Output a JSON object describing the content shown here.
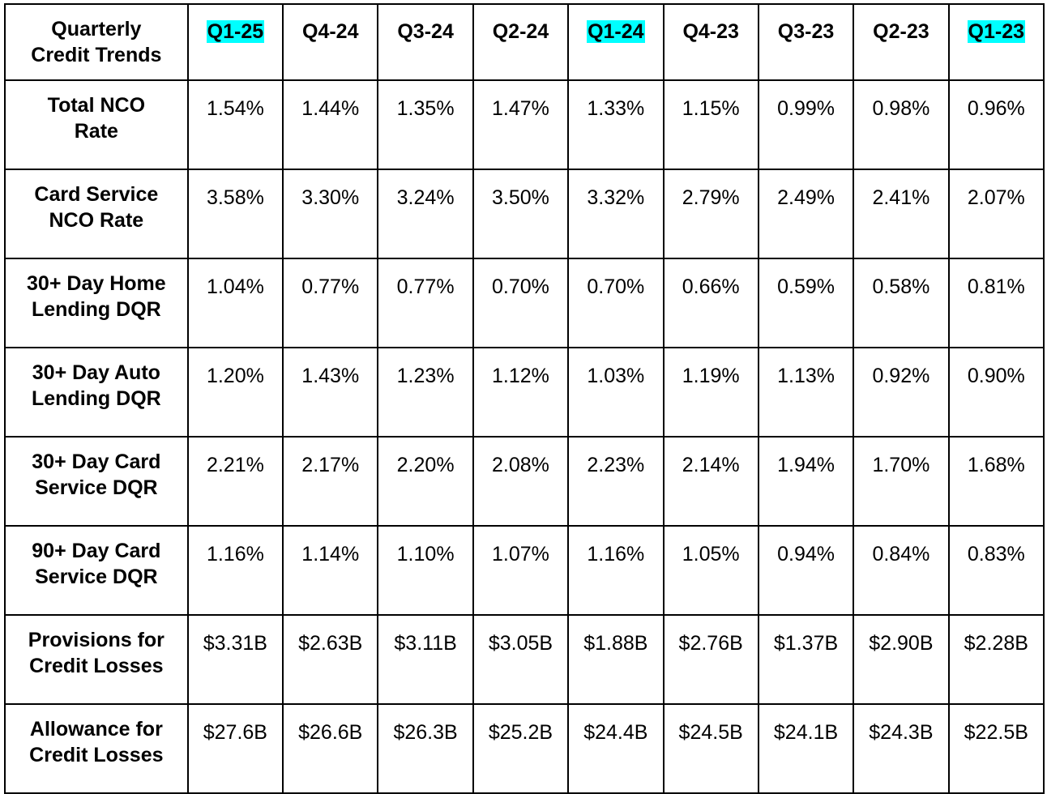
{
  "table": {
    "header_label": [
      "Quarterly",
      "Credit Trends"
    ],
    "quarters": [
      {
        "label": "Q1-25",
        "highlighted": true
      },
      {
        "label": "Q4-24",
        "highlighted": false
      },
      {
        "label": "Q3-24",
        "highlighted": false
      },
      {
        "label": "Q2-24",
        "highlighted": false
      },
      {
        "label": "Q1-24",
        "highlighted": true
      },
      {
        "label": "Q4-23",
        "highlighted": false
      },
      {
        "label": "Q3-23",
        "highlighted": false
      },
      {
        "label": "Q2-23",
        "highlighted": false
      },
      {
        "label": "Q1-23",
        "highlighted": true
      }
    ],
    "highlight_color": "#00ffff",
    "rows": [
      {
        "label": [
          "Total NCO",
          "Rate"
        ],
        "values": [
          "1.54%",
          "1.44%",
          "1.35%",
          "1.47%",
          "1.33%",
          "1.15%",
          "0.99%",
          "0.98%",
          "0.96%"
        ]
      },
      {
        "label": [
          "Card Service",
          "NCO Rate"
        ],
        "values": [
          "3.58%",
          "3.30%",
          "3.24%",
          "3.50%",
          "3.32%",
          "2.79%",
          "2.49%",
          "2.41%",
          "2.07%"
        ]
      },
      {
        "label": [
          "30+ Day Home",
          "Lending DQR"
        ],
        "values": [
          "1.04%",
          "0.77%",
          "0.77%",
          "0.70%",
          "0.70%",
          "0.66%",
          "0.59%",
          "0.58%",
          "0.81%"
        ]
      },
      {
        "label": [
          "30+ Day Auto",
          "Lending DQR"
        ],
        "values": [
          "1.20%",
          "1.43%",
          "1.23%",
          "1.12%",
          "1.03%",
          "1.19%",
          "1.13%",
          "0.92%",
          "0.90%"
        ]
      },
      {
        "label": [
          "30+ Day Card",
          "Service DQR"
        ],
        "values": [
          "2.21%",
          "2.17%",
          "2.20%",
          "2.08%",
          "2.23%",
          "2.14%",
          "1.94%",
          "1.70%",
          "1.68%"
        ]
      },
      {
        "label": [
          "90+ Day Card",
          "Service DQR"
        ],
        "values": [
          "1.16%",
          "1.14%",
          "1.10%",
          "1.07%",
          "1.16%",
          "1.05%",
          "0.94%",
          "0.84%",
          "0.83%"
        ]
      },
      {
        "label": [
          "Provisions for",
          "Credit Losses"
        ],
        "values": [
          "$3.31B",
          "$2.63B",
          "$3.11B",
          "$3.05B",
          "$1.88B",
          "$2.76B",
          "$1.37B",
          "$2.90B",
          "$2.28B"
        ]
      },
      {
        "label": [
          "Allowance for",
          "Credit Losses"
        ],
        "values": [
          "$27.6B",
          "$26.6B",
          "$26.3B",
          "$25.2B",
          "$24.4B",
          "$24.5B",
          "$24.1B",
          "$24.3B",
          "$22.5B"
        ]
      }
    ]
  }
}
